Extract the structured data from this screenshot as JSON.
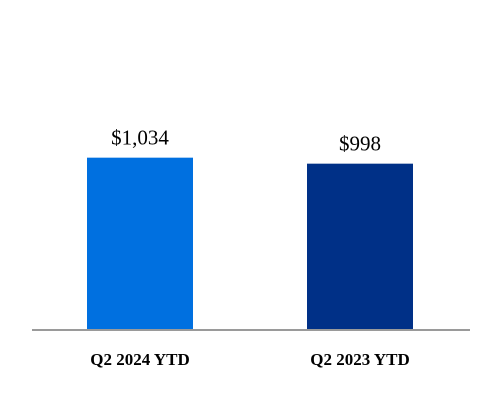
{
  "chart_data": {
    "type": "bar",
    "categories": [
      "Q2 2024 YTD",
      "Q2 2023 YTD"
    ],
    "values": [
      1034,
      998
    ],
    "data_labels": [
      "$1,034",
      "$998"
    ],
    "colors": [
      "#0070E0",
      "#003087"
    ],
    "axis_color": "#9a9a9a",
    "ylim": [
      0,
      1200
    ],
    "grid": false,
    "title": "",
    "xlabel": "",
    "ylabel": ""
  }
}
